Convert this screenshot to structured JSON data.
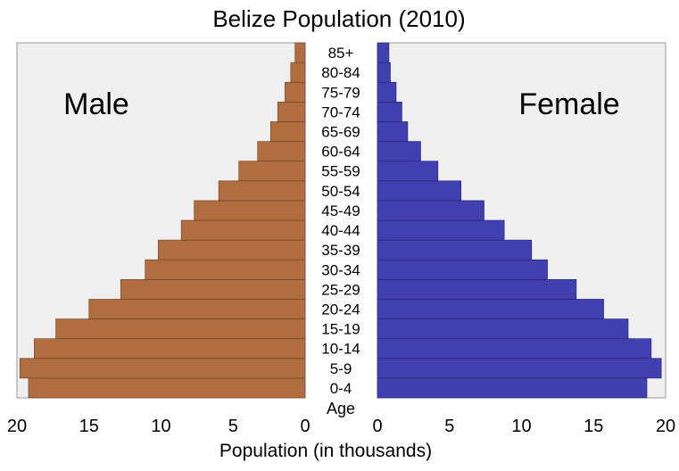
{
  "chart_data": {
    "type": "bar",
    "subtype": "population-pyramid",
    "title": "Belize Population (2010)",
    "xlabel": "Population (in thousands)",
    "age_label": "Age",
    "categories": [
      "0-4",
      "5-9",
      "10-14",
      "15-19",
      "20-24",
      "25-29",
      "30-34",
      "35-39",
      "40-44",
      "45-49",
      "50-54",
      "55-59",
      "60-64",
      "65-69",
      "70-74",
      "75-79",
      "80-84",
      "85+"
    ],
    "series": [
      {
        "name": "Male",
        "color": "#b06d3f",
        "values": [
          19.2,
          19.8,
          18.8,
          17.3,
          15.0,
          12.8,
          11.1,
          10.2,
          8.6,
          7.7,
          6.0,
          4.6,
          3.3,
          2.4,
          1.9,
          1.4,
          1.0,
          0.7
        ]
      },
      {
        "name": "Female",
        "color": "#4040b0",
        "values": [
          18.7,
          19.7,
          19.0,
          17.4,
          15.7,
          13.8,
          11.8,
          10.7,
          8.8,
          7.4,
          5.8,
          4.2,
          3.0,
          2.1,
          1.7,
          1.3,
          0.9,
          0.8
        ]
      }
    ],
    "xlim": [
      0,
      20
    ],
    "xticks": [
      20,
      15,
      10,
      5,
      0
    ],
    "xticks_right": [
      0,
      5,
      10,
      15,
      20
    ],
    "grid": false
  }
}
